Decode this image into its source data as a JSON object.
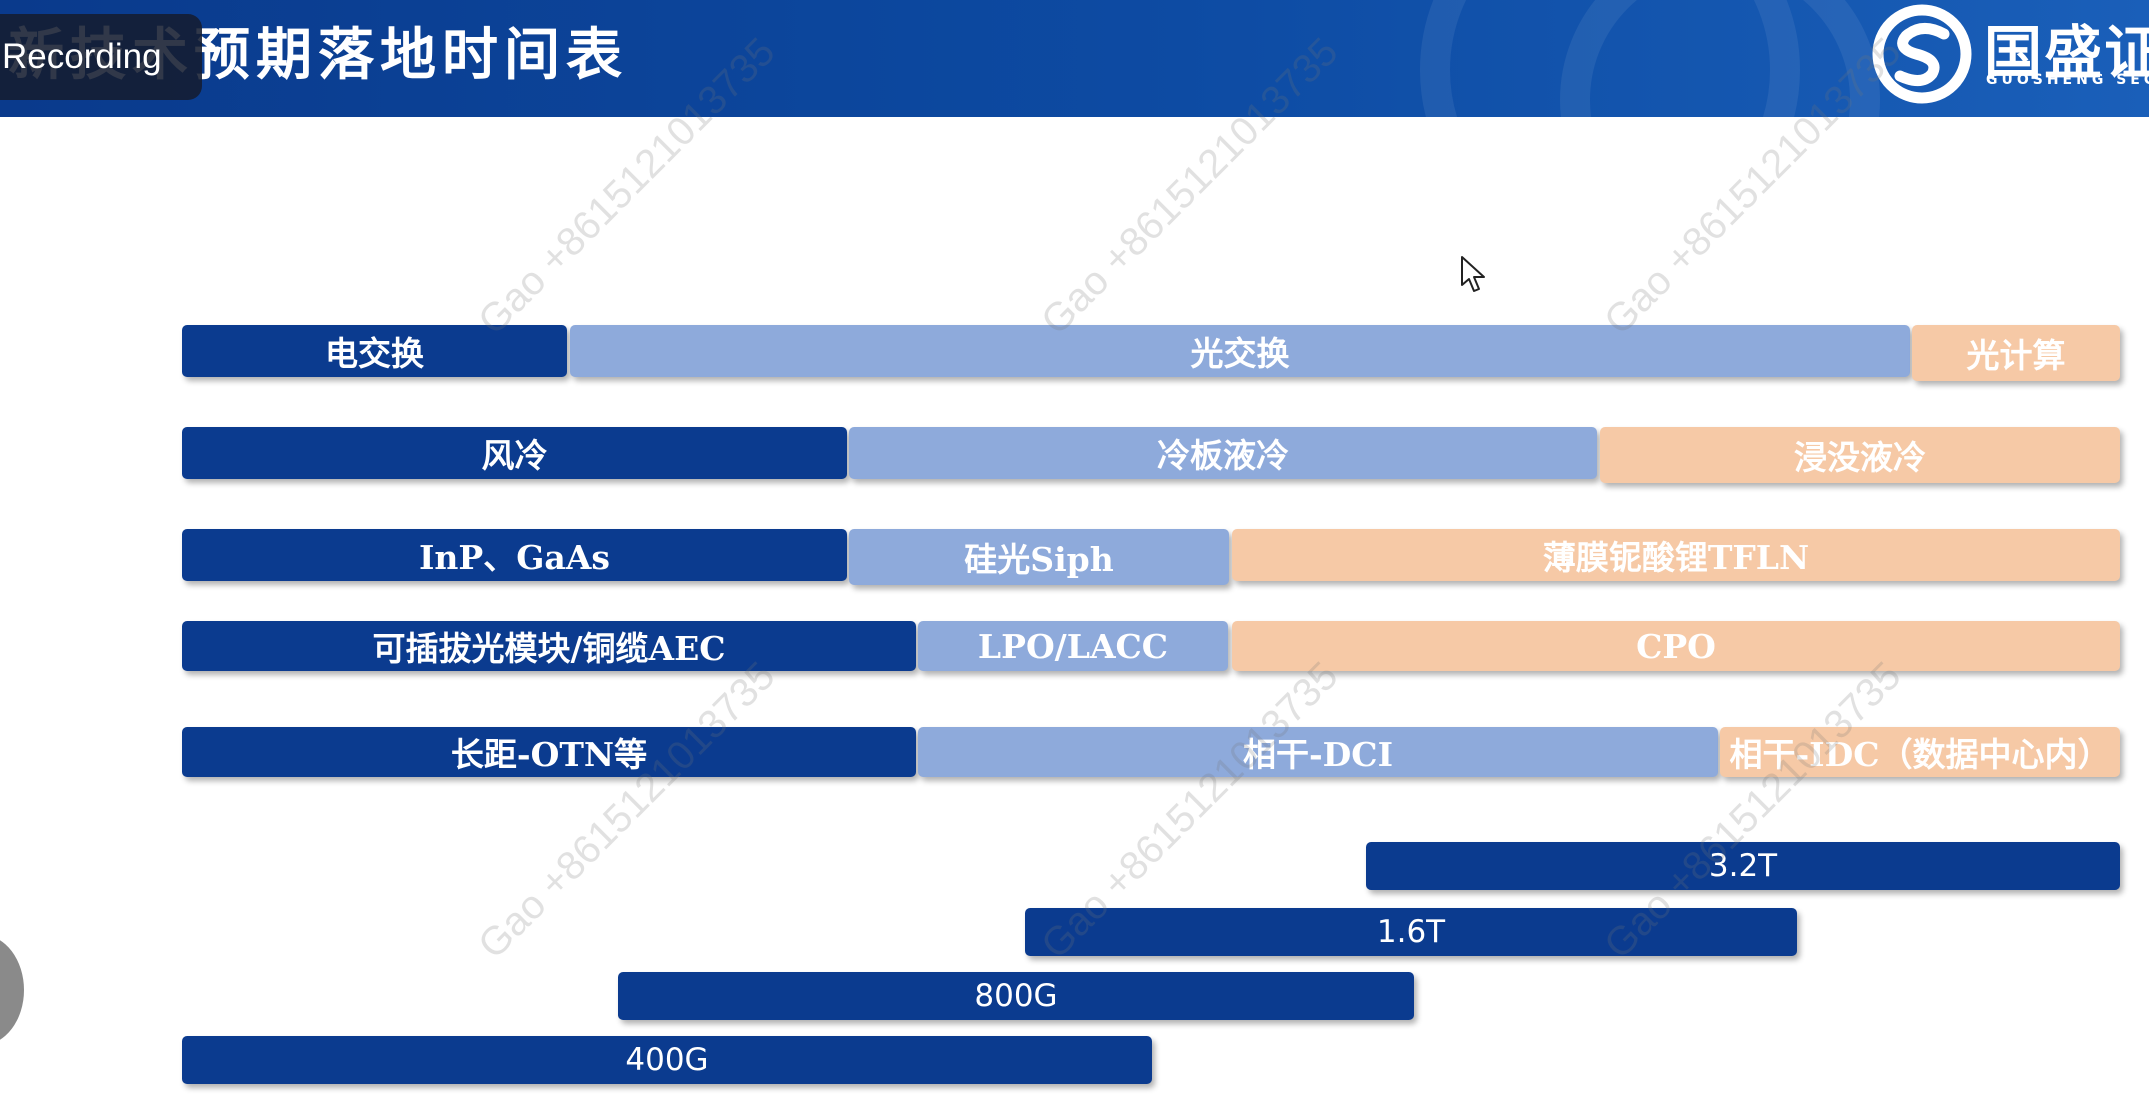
{
  "header": {
    "title": "新技术预期落地时间表",
    "recording_label": "Recording",
    "logo_cn": "国盛证",
    "logo_en": "GUOSHENG SEC"
  },
  "watermark_text": "Gao +8615121013735",
  "rows": {
    "switching": [
      "电交换",
      "光交换",
      "光计算"
    ],
    "cooling": [
      "风冷",
      "冷板液冷",
      "浸没液冷"
    ],
    "materials": [
      "InP、GaAs",
      "硅光Siph",
      "薄膜铌酸锂TFLN"
    ],
    "modules": [
      "可插拔光模块/铜缆AEC",
      "LPO/LACC",
      "CPO"
    ],
    "distance": [
      "长距-OTN等",
      "相干-DCI",
      "相干-IDC（数据中心内）"
    ]
  },
  "speeds": [
    "3.2T",
    "1.6T",
    "800G",
    "400G"
  ],
  "colors": {
    "dark_blue": "#0b3b8f",
    "light_blue": "#8eaadb",
    "peach": "#f6c9a6",
    "header_blue": "#0d4ba3"
  }
}
